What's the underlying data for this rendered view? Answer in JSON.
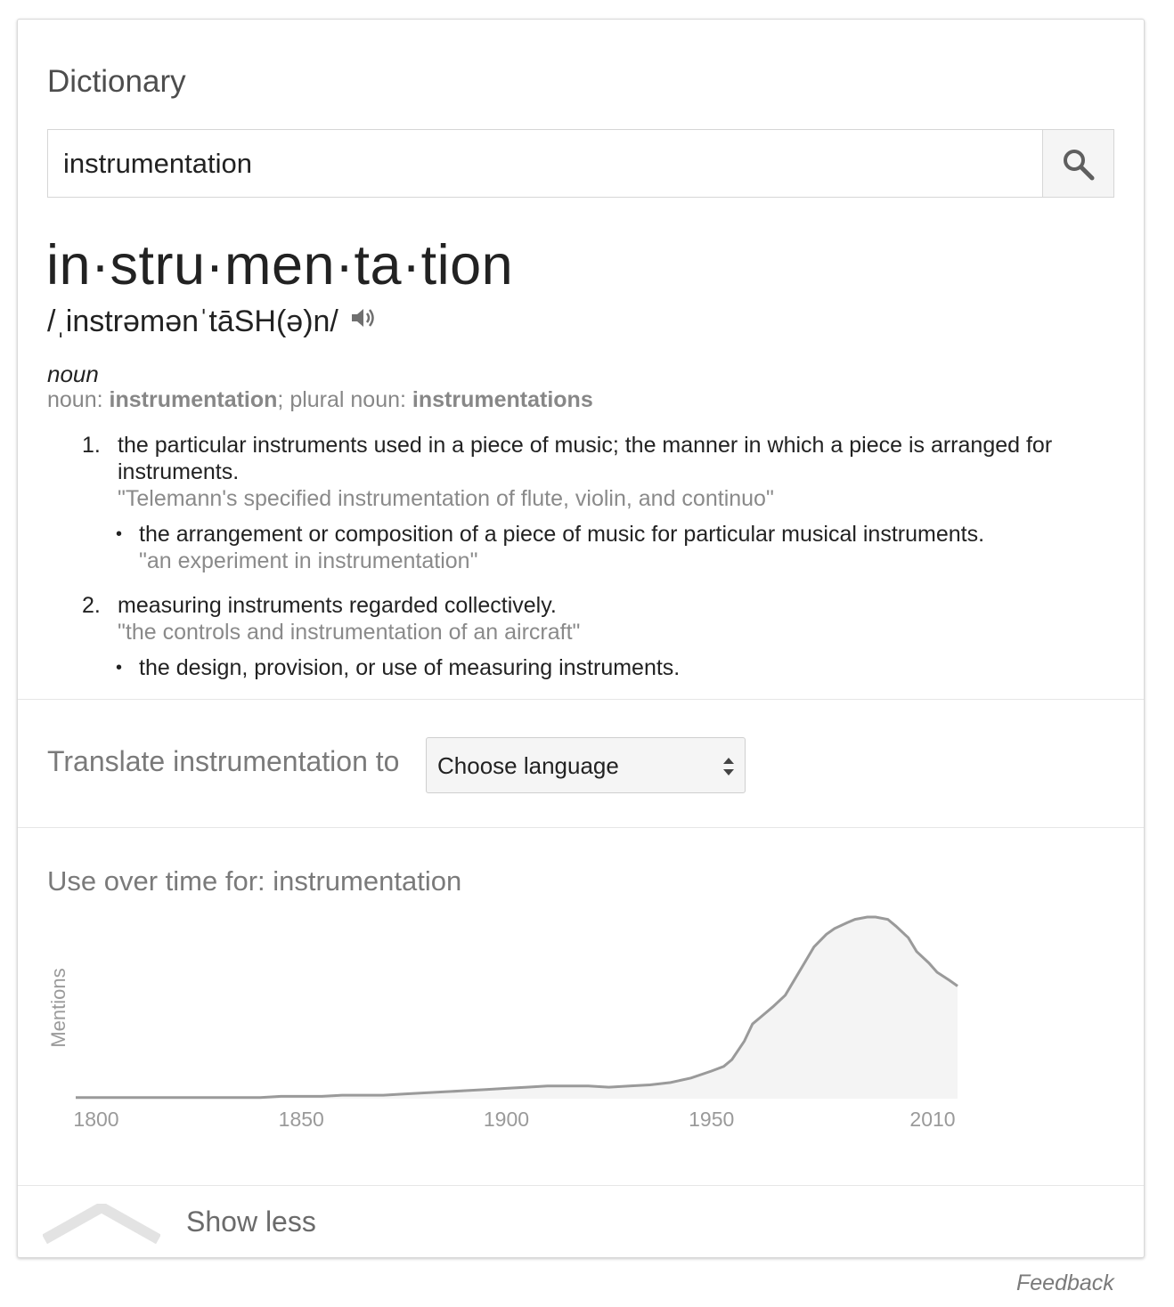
{
  "card": {
    "heading": "Dictionary",
    "search": {
      "value": "instrumentation",
      "icon": "search-icon"
    },
    "headword": "in·stru·men·ta·tion",
    "phonetic": "/ˌinstrəmənˈtāSH(ə)n/",
    "speaker_icon": "speaker-icon",
    "part_of_speech": "noun",
    "forms": {
      "label1": "noun: ",
      "word1": "instrumentation",
      "sep": "; plural noun: ",
      "word2": "instrumentations"
    },
    "senses": [
      {
        "number": "1.",
        "definition_line1": "the particular instruments used in a piece of music; the manner in which a piece is arranged for",
        "definition_line2": "instruments.",
        "example": "\"Telemann's specified instrumentation of flute, violin, and continuo\"",
        "subsense": {
          "definition": "the arrangement or composition of a piece of music for particular musical instruments.",
          "example": "\"an experiment in instrumentation\""
        }
      },
      {
        "number": "2.",
        "definition_line1": "measuring instruments regarded collectively.",
        "example": "\"the controls and instrumentation of an aircraft\"",
        "subsense": {
          "definition": "the design, provision, or use of measuring instruments."
        }
      }
    ]
  },
  "translate": {
    "label": "Translate instrumentation to",
    "select_value": "Choose language"
  },
  "usage": {
    "title": "Use over time for: instrumentation"
  },
  "chart_data": {
    "type": "area",
    "title": "Use over time for: instrumentation",
    "ylabel": "Mentions",
    "xlabel": "",
    "x_ticks": [
      1800,
      1850,
      1900,
      1950,
      2010
    ],
    "xlim": [
      1795,
      2010
    ],
    "grid": false,
    "legend": "none",
    "color": "#9a9a9a",
    "fill": "#f4f4f4",
    "series": [
      {
        "x": [
          1795,
          1800,
          1840,
          1845,
          1850,
          1855,
          1860,
          1870,
          1875,
          1880,
          1885,
          1890,
          1895,
          1900,
          1905,
          1910,
          1915,
          1920,
          1925,
          1930,
          1935,
          1940,
          1945,
          1950,
          1953,
          1955,
          1958,
          1960,
          1963,
          1965,
          1968,
          1970,
          1973,
          1975,
          1978,
          1980,
          1983,
          1985,
          1988,
          1990,
          1993,
          1995,
          1998,
          2000,
          2003,
          2005,
          2008,
          2010
        ],
        "y": [
          1,
          1,
          1,
          2,
          2,
          2,
          3,
          3,
          4,
          5,
          6,
          7,
          8,
          9,
          10,
          11,
          11,
          11,
          10,
          11,
          12,
          14,
          18,
          24,
          28,
          34,
          50,
          65,
          74,
          80,
          90,
          102,
          120,
          132,
          143,
          148,
          153,
          156,
          158,
          158,
          156,
          150,
          140,
          128,
          118,
          110,
          103,
          98
        ]
      }
    ]
  },
  "show_less": {
    "label": "Show less",
    "icon": "chevron-up-icon"
  },
  "feedback": "Feedback"
}
